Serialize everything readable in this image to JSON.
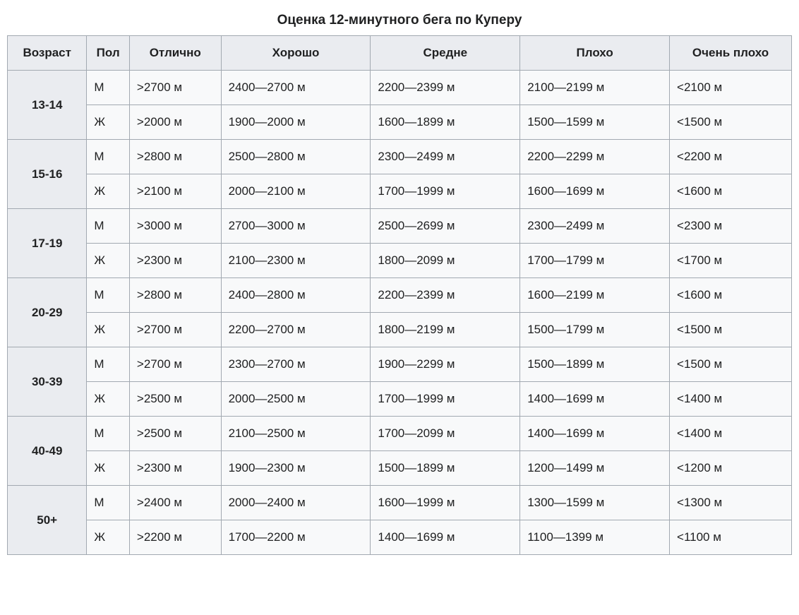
{
  "table": {
    "caption": "Оценка 12-минутного бега по Куперу",
    "columns": [
      "Возраст",
      "Пол",
      "Отлично",
      "Хорошо",
      "Средне",
      "Плохо",
      "Очень плохо"
    ],
    "column_widths": [
      "104px",
      "56px",
      "120px",
      "196px",
      "196px",
      "196px",
      "160px"
    ],
    "groups": [
      {
        "age": "13-14",
        "rows": [
          {
            "gender": "М",
            "excellent": ">2700 м",
            "good": "2400—2700 м",
            "average": "2200—2399 м",
            "bad": "2100—2199 м",
            "very_bad": "<2100 м"
          },
          {
            "gender": "Ж",
            "excellent": ">2000 м",
            "good": "1900—2000 м",
            "average": "1600—1899 м",
            "bad": "1500—1599 м",
            "very_bad": "<1500 м"
          }
        ]
      },
      {
        "age": "15-16",
        "rows": [
          {
            "gender": "М",
            "excellent": ">2800 м",
            "good": "2500—2800 м",
            "average": "2300—2499 м",
            "bad": "2200—2299 м",
            "very_bad": "<2200 м"
          },
          {
            "gender": "Ж",
            "excellent": ">2100 м",
            "good": "2000—2100 м",
            "average": "1700—1999 м",
            "bad": "1600—1699 м",
            "very_bad": "<1600 м"
          }
        ]
      },
      {
        "age": "17-19",
        "rows": [
          {
            "gender": "М",
            "excellent": ">3000 м",
            "good": "2700—3000 м",
            "average": "2500—2699 м",
            "bad": "2300—2499 м",
            "very_bad": "<2300 м"
          },
          {
            "gender": "Ж",
            "excellent": ">2300 м",
            "good": "2100—2300 м",
            "average": "1800—2099 м",
            "bad": "1700—1799 м",
            "very_bad": "<1700 м"
          }
        ]
      },
      {
        "age": "20-29",
        "rows": [
          {
            "gender": "М",
            "excellent": ">2800 м",
            "good": "2400—2800 м",
            "average": "2200—2399 м",
            "bad": "1600—2199 м",
            "very_bad": "<1600 м"
          },
          {
            "gender": "Ж",
            "excellent": ">2700 м",
            "good": "2200—2700 м",
            "average": "1800—2199 м",
            "bad": "1500—1799 м",
            "very_bad": "<1500 м"
          }
        ]
      },
      {
        "age": "30-39",
        "rows": [
          {
            "gender": "М",
            "excellent": ">2700 м",
            "good": "2300—2700 м",
            "average": "1900—2299 м",
            "bad": "1500—1899 м",
            "very_bad": "<1500 м"
          },
          {
            "gender": "Ж",
            "excellent": ">2500 м",
            "good": "2000—2500 м",
            "average": "1700—1999 м",
            "bad": "1400—1699 м",
            "very_bad": "<1400 м"
          }
        ]
      },
      {
        "age": "40-49",
        "rows": [
          {
            "gender": "М",
            "excellent": ">2500 м",
            "good": "2100—2500 м",
            "average": "1700—2099 м",
            "bad": "1400—1699 м",
            "very_bad": "<1400 м"
          },
          {
            "gender": "Ж",
            "excellent": ">2300 м",
            "good": "1900—2300 м",
            "average": "1500—1899 м",
            "bad": "1200—1499 м",
            "very_bad": "<1200 м"
          }
        ]
      },
      {
        "age": "50+",
        "rows": [
          {
            "gender": "М",
            "excellent": ">2400 м",
            "good": "2000—2400 м",
            "average": "1600—1999 м",
            "bad": "1300—1599 м",
            "very_bad": "<1300 м"
          },
          {
            "gender": "Ж",
            "excellent": ">2200 м",
            "good": "1700—2200 м",
            "average": "1400—1699 м",
            "bad": "1100—1399 м",
            "very_bad": "<1100 м"
          }
        ]
      }
    ],
    "styling": {
      "border_color": "#a2a9b1",
      "header_bg": "#eaecf0",
      "cell_bg": "#f8f9fa",
      "text_color": "#202122",
      "caption_fontsize": 19,
      "cell_fontsize": 17
    }
  }
}
